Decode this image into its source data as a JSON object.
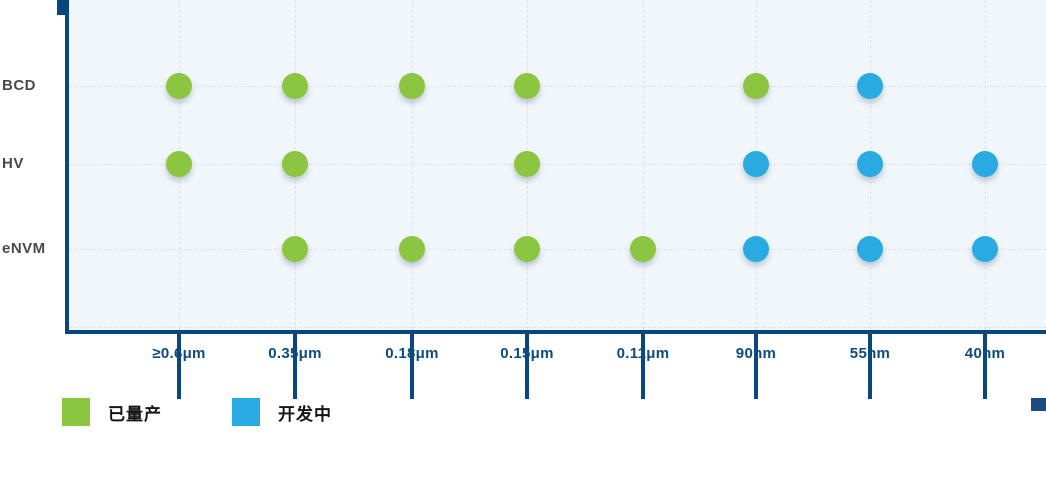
{
  "chart_data": {
    "type": "scatter",
    "title": "",
    "x_labels": [
      "≥0.6μm",
      "0.35μm",
      "0.18μm",
      "0.15μm",
      "0.11μm",
      "90nm",
      "55nm",
      "40nm"
    ],
    "y_labels": [
      "BCD",
      "HV",
      "eNVM"
    ],
    "matrix": [
      [
        "已量产",
        "已量产",
        "已量产",
        "已量产",
        null,
        "已量产",
        "开发中",
        null
      ],
      [
        "已量产",
        "已量产",
        null,
        "已量产",
        null,
        "开发中",
        "开发中",
        "开发中"
      ],
      [
        null,
        "已量产",
        "已量产",
        "已量产",
        "已量产",
        "开发中",
        "开发中",
        "开发中"
      ]
    ],
    "legend": [
      {
        "label": "已量产",
        "color": "#8CC640"
      },
      {
        "label": "开发中",
        "color": "#29ABE2"
      }
    ],
    "legend_position": "bottom-left",
    "grid_on": true,
    "colors": {
      "axis": "#07477D",
      "plot_background": "#F1F6FB",
      "grid_line": "#D8E2EE",
      "y_label_text": "#4A4A4A",
      "x_label_text": "#0B4B80",
      "mass_production": "#8CC640",
      "in_development": "#29ABE2"
    }
  }
}
